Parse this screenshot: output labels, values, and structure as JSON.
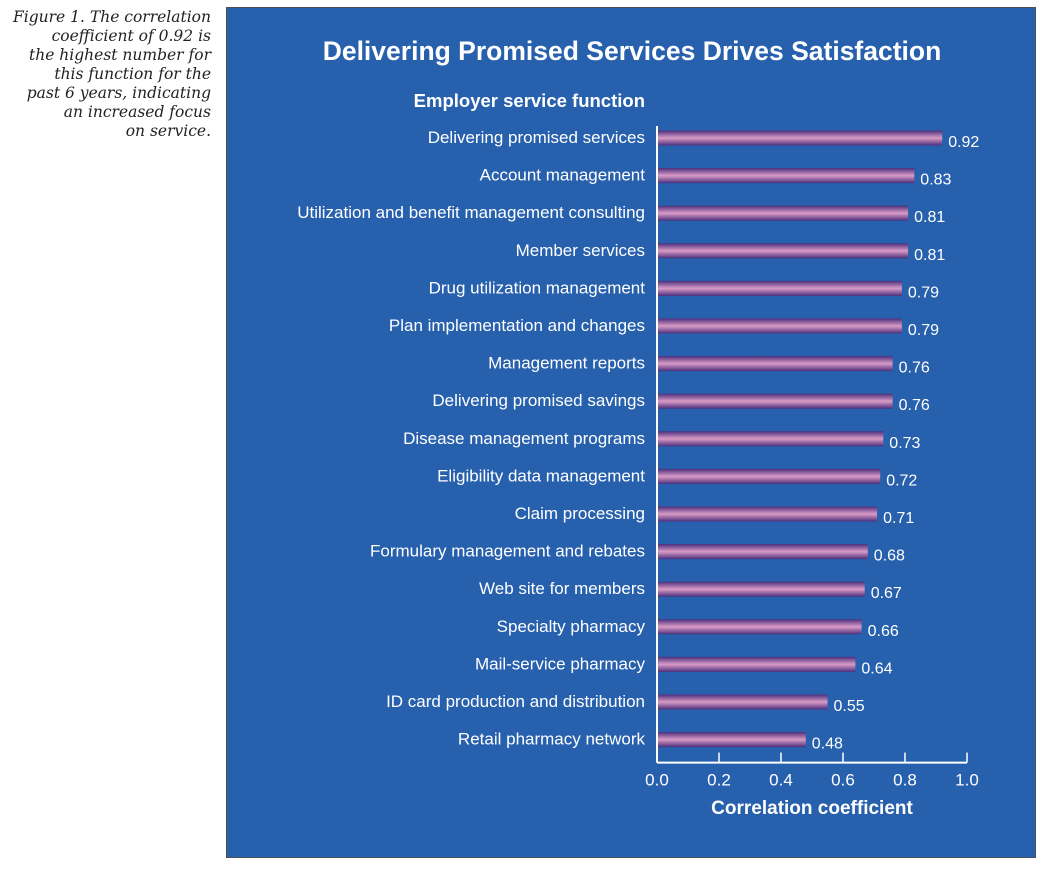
{
  "caption": {
    "lines": [
      "Figure 1. The correlation",
      "coefficient of 0.92 is",
      "the highest number for",
      "this function for the",
      "past 6 years, indicating",
      "an increased focus",
      "on service."
    ]
  },
  "colors": {
    "panel_bg": "#2760ad",
    "bar_dark": "#4d2f7c",
    "bar_light": "#d99bc6",
    "text": "#ffffff"
  },
  "chart_data": {
    "type": "bar",
    "orientation": "horizontal",
    "title": "Delivering Promised Services Drives Satisfaction",
    "category_axis_title": "Employer service function",
    "xlabel": "Correlation coefficient",
    "ylabel": "Employer service function",
    "xlim": [
      0.0,
      1.0
    ],
    "xticks": [
      "0.0",
      "0.2",
      "0.4",
      "0.6",
      "0.8",
      "1.0"
    ],
    "grid": false,
    "legend": "none",
    "categories": [
      "Delivering promised services",
      "Account management",
      "Utilization and benefit management consulting",
      "Member services",
      "Drug utilization management",
      "Plan implementation and changes",
      "Management reports",
      "Delivering promised savings",
      "Disease management programs",
      "Eligibility data management",
      "Claim processing",
      "Formulary management and rebates",
      "Web site for members",
      "Specialty pharmacy",
      "Mail-service pharmacy",
      "ID card production and distribution",
      "Retail pharmacy network"
    ],
    "values": [
      0.92,
      0.83,
      0.81,
      0.81,
      0.79,
      0.79,
      0.76,
      0.76,
      0.73,
      0.72,
      0.71,
      0.68,
      0.67,
      0.66,
      0.64,
      0.55,
      0.48
    ],
    "value_labels": [
      "0.92",
      "0.83",
      "0.81",
      "0.81",
      "0.79",
      "0.79",
      "0.76",
      "0.76",
      "0.73",
      "0.72",
      "0.71",
      "0.68",
      "0.67",
      "0.66",
      "0.64",
      "0.55",
      "0.48"
    ]
  }
}
